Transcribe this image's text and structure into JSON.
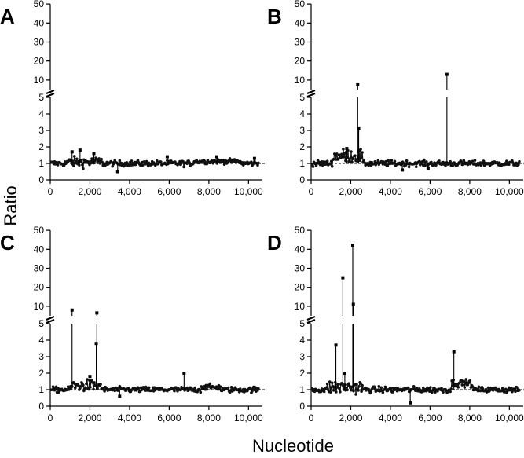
{
  "xlabel": "Nucleotide",
  "ylabel": "Ratio",
  "chart_data": [
    {
      "type": "scatter",
      "panel": "A",
      "xlabel": "Nucleotide",
      "ylabel": "Ratio",
      "xlim": [
        0,
        10700
      ],
      "x_ticks": [
        0,
        2000,
        4000,
        6000,
        8000,
        10000
      ],
      "x_tick_labels": [
        "0",
        "2,000",
        "4,000",
        "6,000",
        "8,000",
        "10,000"
      ],
      "y_scale": "broken axis: linear 0–5 lower segment, 5–50 upper segment",
      "y_ticks_lower": [
        0,
        1,
        2,
        3,
        4,
        5
      ],
      "y_ticks_upper": [
        10,
        20,
        30,
        40,
        50
      ],
      "baseline": 1,
      "noise": 0.12,
      "regions": [
        {
          "x": [
            800,
            2600
          ],
          "shift": 0.08,
          "noise": 0.22
        },
        {
          "x": [
            7200,
            9600
          ],
          "shift": 0.12,
          "noise": 0.1
        }
      ],
      "peaks": [
        {
          "x": 1100,
          "y": 1.7
        },
        {
          "x": 1500,
          "y": 1.8
        },
        {
          "x": 2200,
          "y": 1.6
        },
        {
          "x": 3400,
          "y": 0.5
        },
        {
          "x": 5900,
          "y": 1.4
        },
        {
          "x": 8400,
          "y": 1.4
        },
        {
          "x": 10300,
          "y": 1.3
        }
      ],
      "grid": false,
      "legend": "none"
    },
    {
      "type": "scatter",
      "panel": "B",
      "xlabel": "Nucleotide",
      "ylabel": "Ratio",
      "xlim": [
        0,
        10700
      ],
      "x_ticks": [
        0,
        2000,
        4000,
        6000,
        8000,
        10000
      ],
      "x_tick_labels": [
        "0",
        "2,000",
        "4,000",
        "6,000",
        "8,000",
        "10,000"
      ],
      "y_scale": "broken axis: linear 0–5 lower segment, 5–50 upper segment",
      "y_ticks_lower": [
        0,
        1,
        2,
        3,
        4,
        5
      ],
      "y_ticks_upper": [
        10,
        20,
        30,
        40,
        50
      ],
      "baseline": 1,
      "noise": 0.12,
      "regions": [
        {
          "x": [
            1100,
            2600
          ],
          "shift": 0.45,
          "noise": 0.3
        }
      ],
      "peaks": [
        {
          "x": 2350,
          "y": 7.5
        },
        {
          "x": 2400,
          "y": 3.1
        },
        {
          "x": 6850,
          "y": 13
        },
        {
          "x": 1800,
          "y": 1.9
        },
        {
          "x": 5900,
          "y": 0.7
        },
        {
          "x": 4600,
          "y": 0.6
        }
      ],
      "grid": false,
      "legend": "none"
    },
    {
      "type": "scatter",
      "panel": "C",
      "xlabel": "Nucleotide",
      "ylabel": "Ratio",
      "xlim": [
        0,
        10700
      ],
      "x_ticks": [
        0,
        2000,
        4000,
        6000,
        8000,
        10000
      ],
      "x_tick_labels": [
        "0",
        "2,000",
        "4,000",
        "6,000",
        "8,000",
        "10,000"
      ],
      "y_scale": "broken axis: linear 0–5 lower segment, 5–50 upper segment",
      "y_ticks_lower": [
        0,
        1,
        2,
        3,
        4,
        5
      ],
      "y_ticks_upper": [
        10,
        20,
        30,
        40,
        50
      ],
      "baseline": 1,
      "noise": 0.12,
      "regions": [
        {
          "x": [
            1000,
            2600
          ],
          "shift": 0.25,
          "noise": 0.25
        },
        {
          "x": [
            7600,
            8600
          ],
          "shift": 0.15,
          "noise": 0.12
        }
      ],
      "peaks": [
        {
          "x": 1100,
          "y": 8
        },
        {
          "x": 2350,
          "y": 6.5
        },
        {
          "x": 2320,
          "y": 3.8
        },
        {
          "x": 6750,
          "y": 2.0
        },
        {
          "x": 2000,
          "y": 1.8
        },
        {
          "x": 3500,
          "y": 0.6
        }
      ],
      "grid": false,
      "legend": "none"
    },
    {
      "type": "scatter",
      "panel": "D",
      "xlabel": "Nucleotide",
      "ylabel": "Ratio",
      "xlim": [
        0,
        10700
      ],
      "x_ticks": [
        0,
        2000,
        4000,
        6000,
        8000,
        10000
      ],
      "x_tick_labels": [
        "0",
        "2,000",
        "4,000",
        "6,000",
        "8,000",
        "10,000"
      ],
      "y_scale": "broken axis: linear 0–5 lower segment, 5–50 upper segment",
      "y_ticks_lower": [
        0,
        1,
        2,
        3,
        4,
        5
      ],
      "y_ticks_upper": [
        10,
        20,
        30,
        40,
        50
      ],
      "baseline": 1,
      "noise": 0.13,
      "regions": [
        {
          "x": [
            800,
            2600
          ],
          "shift": 0.15,
          "noise": 0.3
        },
        {
          "x": [
            7100,
            8100
          ],
          "shift": 0.4,
          "noise": 0.15
        }
      ],
      "peaks": [
        {
          "x": 1250,
          "y": 3.7
        },
        {
          "x": 1600,
          "y": 25
        },
        {
          "x": 2100,
          "y": 42
        },
        {
          "x": 2130,
          "y": 11
        },
        {
          "x": 1700,
          "y": 2.0
        },
        {
          "x": 7200,
          "y": 3.3
        },
        {
          "x": 5000,
          "y": 0.2
        }
      ],
      "grid": false,
      "legend": "none"
    }
  ]
}
